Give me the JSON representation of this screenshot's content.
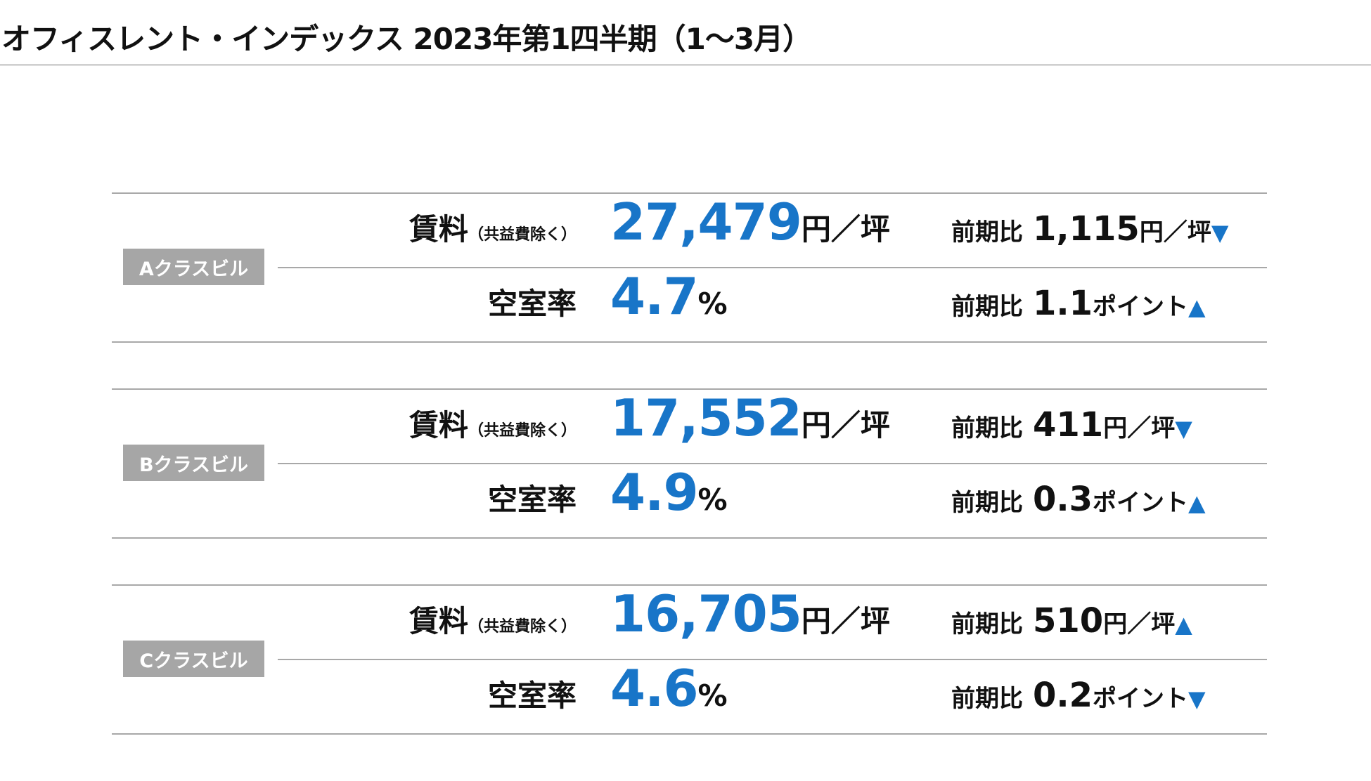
{
  "title": "オフィスレント・インデックス 2023年第1四半期（1～3月）",
  "labels": {
    "rent_main": "賃料",
    "rent_note": "（共益費除く）",
    "vacancy": "空室率",
    "change_prefix": "前期比"
  },
  "accent_color": "#1875c8",
  "sections": [
    {
      "class_label": "Aクラスビル",
      "rent": {
        "value": "27,479",
        "unit": "円／坪",
        "change": "1,115",
        "change_unit": "円／坪",
        "direction_arrow": "▼"
      },
      "vacancy": {
        "value": "4.7",
        "unit": "%",
        "change": "1.1",
        "change_unit": "ポイント",
        "direction_arrow": "▲"
      }
    },
    {
      "class_label": "Bクラスビル",
      "rent": {
        "value": "17,552",
        "unit": "円／坪",
        "change": "411",
        "change_unit": "円／坪",
        "direction_arrow": "▼"
      },
      "vacancy": {
        "value": "4.9",
        "unit": "%",
        "change": "0.3",
        "change_unit": "ポイント",
        "direction_arrow": "▲"
      }
    },
    {
      "class_label": "Cクラスビル",
      "rent": {
        "value": "16,705",
        "unit": "円／坪",
        "change": "510",
        "change_unit": "円／坪",
        "direction_arrow": "▲"
      },
      "vacancy": {
        "value": "4.6",
        "unit": "%",
        "change": "0.2",
        "change_unit": "ポイント",
        "direction_arrow": "▼"
      }
    }
  ]
}
